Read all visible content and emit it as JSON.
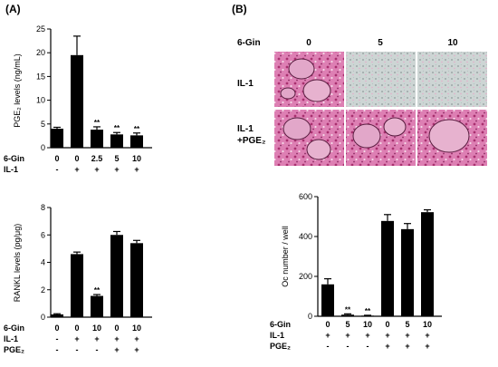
{
  "panel_labels": [
    "(A)",
    "(B)"
  ],
  "micrograph": {
    "row_header": "6-Gin",
    "columns": [
      "0",
      "5",
      "10"
    ],
    "rows": [
      "IL-1",
      "IL-1",
      "+PGE₂"
    ]
  },
  "chart_data": [
    {
      "type": "bar",
      "ylabel": "PGE₂ levels (ng/mL)",
      "ylim": [
        0,
        25
      ],
      "yticks": [
        "0",
        "5",
        "10",
        "15",
        "20",
        "25"
      ],
      "values": [
        4.0,
        19.5,
        3.8,
        2.8,
        2.6
      ],
      "errors": [
        0.3,
        4.0,
        0.6,
        0.4,
        0.5
      ],
      "significance": [
        "",
        "",
        "**",
        "**",
        "**"
      ],
      "conditions": [
        {
          "label": "6-Gin",
          "values": [
            "0",
            "0",
            "2.5",
            "5",
            "10"
          ]
        },
        {
          "label": "IL-1",
          "values": [
            "-",
            "+",
            "+",
            "+",
            "+"
          ]
        }
      ]
    },
    {
      "type": "bar",
      "ylabel": "RANKL levels (pg/μg)",
      "ylim": [
        0,
        8
      ],
      "yticks": [
        "0",
        "2",
        "4",
        "6",
        "8"
      ],
      "values": [
        0.2,
        4.6,
        1.55,
        6.0,
        5.4
      ],
      "errors": [
        0.05,
        0.15,
        0.1,
        0.25,
        0.2
      ],
      "significance": [
        "",
        "",
        "**",
        "",
        ""
      ],
      "conditions": [
        {
          "label": "6-Gin",
          "values": [
            "0",
            "0",
            "10",
            "0",
            "10"
          ]
        },
        {
          "label": "IL-1",
          "values": [
            "-",
            "+",
            "+",
            "+",
            "+"
          ]
        },
        {
          "label": "PGE₂",
          "values": [
            "-",
            "-",
            "-",
            "+",
            "+"
          ]
        }
      ]
    },
    {
      "type": "bar",
      "ylabel": "Oc number / well",
      "ylim": [
        0,
        600
      ],
      "yticks": [
        "0",
        "200",
        "400",
        "600"
      ],
      "values": [
        160,
        8,
        3,
        478,
        437,
        522
      ],
      "errors": [
        28,
        4,
        2,
        32,
        28,
        12
      ],
      "significance": [
        "",
        "**",
        "**",
        "",
        "",
        ""
      ],
      "conditions": [
        {
          "label": "6-Gin",
          "values": [
            "0",
            "5",
            "10",
            "0",
            "5",
            "10"
          ]
        },
        {
          "label": "IL-1",
          "values": [
            "+",
            "+",
            "+",
            "+",
            "+",
            "+"
          ]
        },
        {
          "label": "PGE₂",
          "values": [
            "-",
            "-",
            "-",
            "+",
            "+",
            "+"
          ]
        }
      ]
    }
  ]
}
